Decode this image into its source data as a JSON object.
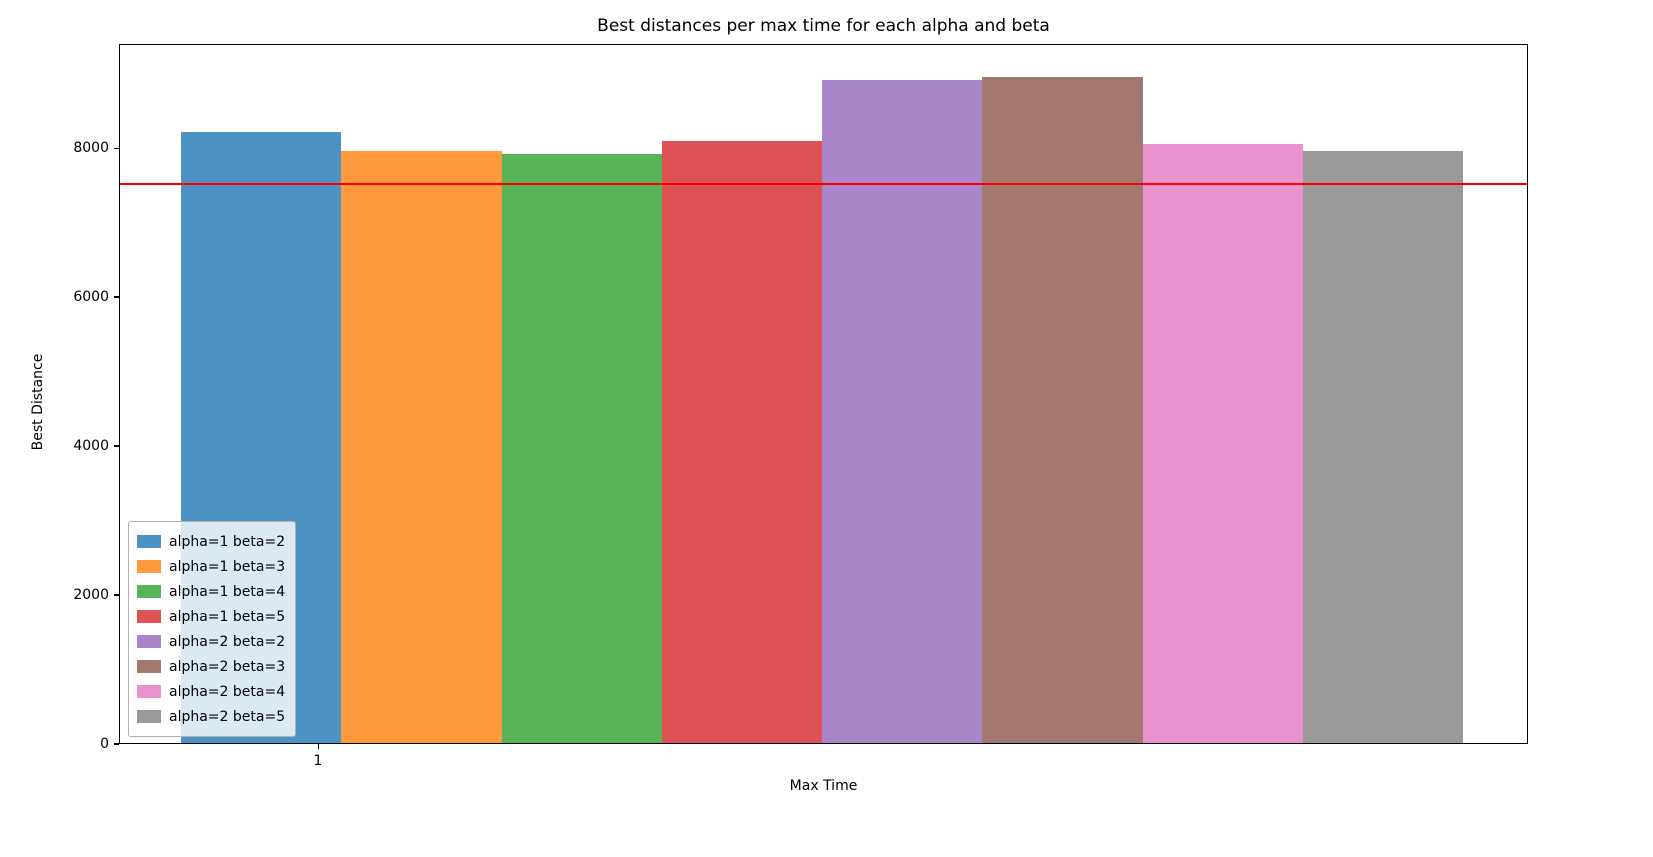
{
  "chart_data": {
    "type": "bar",
    "title": "Best distances per max time for each alpha and beta",
    "xlabel": "Max Time",
    "ylabel": "Best Distance",
    "categories": [
      "1"
    ],
    "series": [
      {
        "name": "alpha=1 beta=2",
        "color": "#1f77b4",
        "values": [
          8200
        ]
      },
      {
        "name": "alpha=1 beta=3",
        "color": "#ff7f0e",
        "values": [
          7950
        ]
      },
      {
        "name": "alpha=1 beta=4",
        "color": "#2ca02c",
        "values": [
          7910
        ]
      },
      {
        "name": "alpha=1 beta=5",
        "color": "#d62728",
        "values": [
          8090
        ]
      },
      {
        "name": "alpha=2 beta=2",
        "color": "#9467bd",
        "values": [
          8910
        ]
      },
      {
        "name": "alpha=2 beta=3",
        "color": "#8c564b",
        "values": [
          8950
        ]
      },
      {
        "name": "alpha=2 beta=4",
        "color": "#e377c2",
        "values": [
          8040
        ]
      },
      {
        "name": "alpha=2 beta=5",
        "color": "#7f7f7f",
        "values": [
          7950
        ]
      }
    ],
    "reference_line": {
      "value": 7540,
      "color": "#ff0000"
    },
    "ylim": [
      0,
      9400
    ],
    "yticks": [
      0,
      2000,
      4000,
      6000,
      8000
    ],
    "bar_opacity": 0.8,
    "legend_position": "lower left",
    "grid": false
  }
}
